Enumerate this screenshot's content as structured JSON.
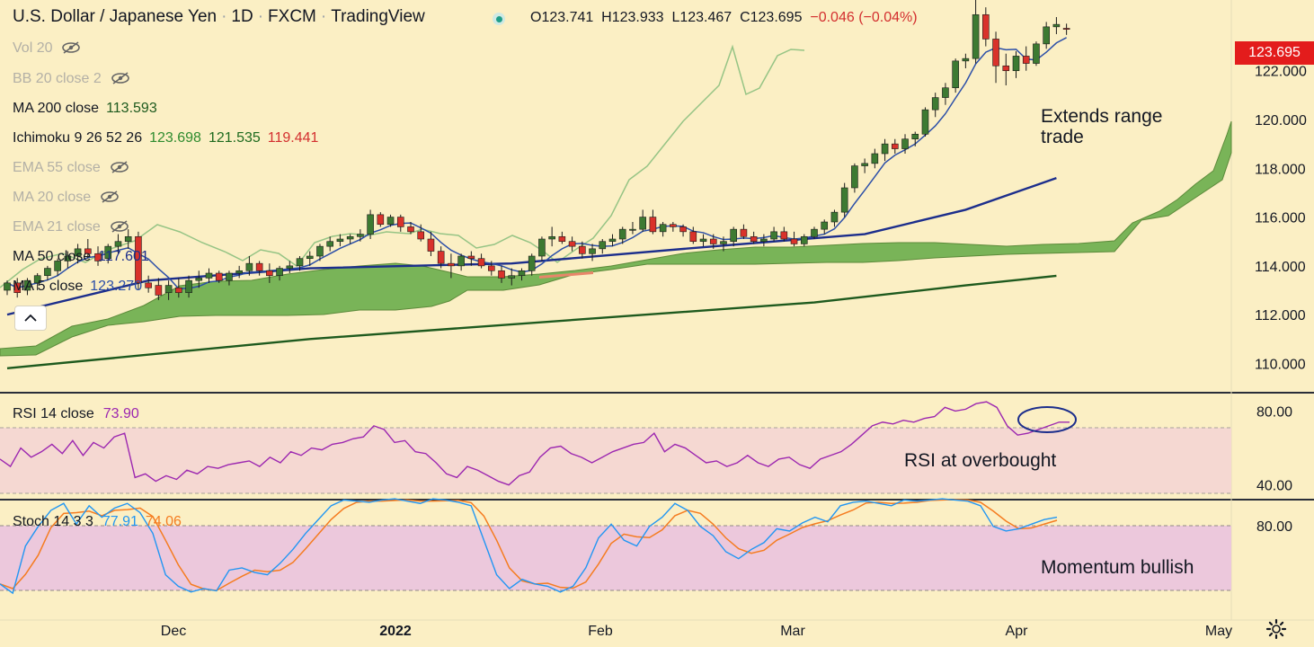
{
  "header": {
    "symbol": "U.S. Dollar / Japanese Yen",
    "interval": "1D",
    "exchange": "FXCM",
    "source": "TradingView",
    "open": "O123.741",
    "high": "H123.933",
    "low": "L123.467",
    "close": "C123.695",
    "change": "−0.046 (−0.04%)"
  },
  "legend": {
    "vol": "Vol 20",
    "bb": "BB 20 close 2",
    "ma200": "MA 200 close",
    "ma200_val": "113.593",
    "ichimoku": "Ichimoku 9 26 52 26",
    "ich_v1": "123.698",
    "ich_v2": "121.535",
    "ich_v3": "119.441",
    "ema55": "EMA 55 close",
    "ma20": "MA 20 close",
    "ema21": "EMA 21 close",
    "ma50": "MA 50 close",
    "ma50_val": "117.601",
    "ma5": "MA 5 close",
    "ma5_val": "123.270"
  },
  "rsi_label": {
    "name": "RSI 14 close",
    "value": "73.90"
  },
  "stoch_label": {
    "name": "Stoch 14 3 3",
    "k": "77.91",
    "d": "74.06"
  },
  "annotations": {
    "price": "Extends range\ntrade",
    "rsi": "RSI at overbought",
    "stoch": "Momentum bullish"
  },
  "current_price": "123.695",
  "colors": {
    "background": "#fbefc4",
    "bull_candle": "#3d7a32",
    "bear_candle": "#d9322b",
    "ma200": "#1e5a1e",
    "ma50": "#1c2e8c",
    "ma5": "#2c4fa8",
    "cloud": "#6aad4c",
    "lagging": "#96c485",
    "rsi": "#9c27b0",
    "rsi_band": "#f5d8d2",
    "stoch_band": "#ecc8dc",
    "stoch_k": "#2196f3",
    "stoch_d": "#f57c20"
  },
  "chart_data": {
    "type": "candlestick",
    "title": "U.S. Dollar / Japanese Yen · 1D · FXCM",
    "x_ticks": [
      "Dec",
      "2022",
      "Feb",
      "Mar",
      "Apr",
      "May"
    ],
    "y_ticks_price": [
      "110.000",
      "112.000",
      "114.000",
      "116.000",
      "118.000",
      "120.000",
      "122.000"
    ],
    "y_ticks_rsi": [
      "40.00",
      "80.00"
    ],
    "y_ticks_stoch": [
      "80.00"
    ],
    "ylim_price": [
      108.8,
      124.9
    ],
    "ylim_rsi": [
      34,
      88
    ],
    "ylim_stoch": [
      0,
      100
    ],
    "candles": [
      [
        113.0,
        113.4,
        112.8,
        113.3
      ],
      [
        113.3,
        113.5,
        112.7,
        112.9
      ],
      [
        113.0,
        113.5,
        112.8,
        113.4
      ],
      [
        113.3,
        113.7,
        113.0,
        113.6
      ],
      [
        113.6,
        114.0,
        113.4,
        113.9
      ],
      [
        113.8,
        114.3,
        113.6,
        114.2
      ],
      [
        114.2,
        114.6,
        113.9,
        114.4
      ],
      [
        114.4,
        114.9,
        114.1,
        114.7
      ],
      [
        114.7,
        115.1,
        114.3,
        114.5
      ],
      [
        114.5,
        114.8,
        114.0,
        114.2
      ],
      [
        114.3,
        114.9,
        114.1,
        114.8
      ],
      [
        114.8,
        115.3,
        114.5,
        115.0
      ],
      [
        115.0,
        115.5,
        114.7,
        115.2
      ],
      [
        115.2,
        115.4,
        113.0,
        113.3
      ],
      [
        113.3,
        113.6,
        112.9,
        113.1
      ],
      [
        113.2,
        113.5,
        112.6,
        112.8
      ],
      [
        112.9,
        113.4,
        112.6,
        113.2
      ],
      [
        113.1,
        113.5,
        112.7,
        112.9
      ],
      [
        112.9,
        113.6,
        112.7,
        113.4
      ],
      [
        113.4,
        113.8,
        113.1,
        113.5
      ],
      [
        113.5,
        113.9,
        113.3,
        113.7
      ],
      [
        113.7,
        113.8,
        113.3,
        113.4
      ],
      [
        113.4,
        113.8,
        113.2,
        113.7
      ],
      [
        113.7,
        114.0,
        113.5,
        113.8
      ],
      [
        113.8,
        114.4,
        113.6,
        114.1
      ],
      [
        114.1,
        114.2,
        113.6,
        113.8
      ],
      [
        113.8,
        114.1,
        113.3,
        113.6
      ],
      [
        113.6,
        114.0,
        113.4,
        113.9
      ],
      [
        113.9,
        114.2,
        113.7,
        114.0
      ],
      [
        114.0,
        114.4,
        113.8,
        114.3
      ],
      [
        114.3,
        114.6,
        114.0,
        114.4
      ],
      [
        114.4,
        114.9,
        114.2,
        114.8
      ],
      [
        114.8,
        115.2,
        114.6,
        115.0
      ],
      [
        115.0,
        115.3,
        114.8,
        115.1
      ],
      [
        115.1,
        115.3,
        114.9,
        115.2
      ],
      [
        115.2,
        115.5,
        115.0,
        115.3
      ],
      [
        115.3,
        116.3,
        115.1,
        116.1
      ],
      [
        116.1,
        116.2,
        115.6,
        115.7
      ],
      [
        115.7,
        116.1,
        115.6,
        116.0
      ],
      [
        116.0,
        116.1,
        115.4,
        115.6
      ],
      [
        115.6,
        115.8,
        115.3,
        115.4
      ],
      [
        115.4,
        115.7,
        115.0,
        115.1
      ],
      [
        115.1,
        115.4,
        114.4,
        114.6
      ],
      [
        114.6,
        114.8,
        113.9,
        114.1
      ],
      [
        114.1,
        114.5,
        113.5,
        114.0
      ],
      [
        114.0,
        114.5,
        113.8,
        114.4
      ],
      [
        114.4,
        114.6,
        114.0,
        114.3
      ],
      [
        114.3,
        114.5,
        113.9,
        114.0
      ],
      [
        114.0,
        114.2,
        113.6,
        113.8
      ],
      [
        113.8,
        114.0,
        113.3,
        113.5
      ],
      [
        113.5,
        113.9,
        113.2,
        113.6
      ],
      [
        113.6,
        113.9,
        113.4,
        113.8
      ],
      [
        113.8,
        114.5,
        113.6,
        114.4
      ],
      [
        114.4,
        115.2,
        114.2,
        115.1
      ],
      [
        115.1,
        115.6,
        114.8,
        115.2
      ],
      [
        115.2,
        115.4,
        114.9,
        115.0
      ],
      [
        115.0,
        115.2,
        114.6,
        114.8
      ],
      [
        114.8,
        115.0,
        114.3,
        114.5
      ],
      [
        114.5,
        114.9,
        114.2,
        114.7
      ],
      [
        114.7,
        115.1,
        114.5,
        115.0
      ],
      [
        115.0,
        115.3,
        114.8,
        115.1
      ],
      [
        115.1,
        115.6,
        114.9,
        115.5
      ],
      [
        115.5,
        115.8,
        115.3,
        115.5
      ],
      [
        115.5,
        116.3,
        115.4,
        116.0
      ],
      [
        116.0,
        116.3,
        115.3,
        115.4
      ],
      [
        115.4,
        115.8,
        115.2,
        115.7
      ],
      [
        115.7,
        115.8,
        115.4,
        115.6
      ],
      [
        115.6,
        115.7,
        115.2,
        115.4
      ],
      [
        115.4,
        115.6,
        114.9,
        115.0
      ],
      [
        115.0,
        115.3,
        114.8,
        115.1
      ],
      [
        115.1,
        115.3,
        114.7,
        114.9
      ],
      [
        114.9,
        115.2,
        114.6,
        115.0
      ],
      [
        115.0,
        115.6,
        114.8,
        115.5
      ],
      [
        115.5,
        115.7,
        115.1,
        115.2
      ],
      [
        115.2,
        115.4,
        114.9,
        115.0
      ],
      [
        115.0,
        115.3,
        114.8,
        115.1
      ],
      [
        115.1,
        115.6,
        115.0,
        115.4
      ],
      [
        115.4,
        115.6,
        115.0,
        115.1
      ],
      [
        115.1,
        115.4,
        114.8,
        114.9
      ],
      [
        114.9,
        115.3,
        114.8,
        115.2
      ],
      [
        115.2,
        115.6,
        115.1,
        115.5
      ],
      [
        115.5,
        115.9,
        115.3,
        115.8
      ],
      [
        115.8,
        116.3,
        115.6,
        116.2
      ],
      [
        116.2,
        117.4,
        116.0,
        117.2
      ],
      [
        117.2,
        118.2,
        117.0,
        118.1
      ],
      [
        118.1,
        118.4,
        117.8,
        118.2
      ],
      [
        118.2,
        118.8,
        118.0,
        118.6
      ],
      [
        118.6,
        119.2,
        118.3,
        119.0
      ],
      [
        119.0,
        119.2,
        118.6,
        118.8
      ],
      [
        118.8,
        119.4,
        118.6,
        119.2
      ],
      [
        119.2,
        119.5,
        118.9,
        119.4
      ],
      [
        119.4,
        120.5,
        119.3,
        120.4
      ],
      [
        120.4,
        121.1,
        120.1,
        120.9
      ],
      [
        120.9,
        121.5,
        120.6,
        121.3
      ],
      [
        121.3,
        122.5,
        121.1,
        122.4
      ],
      [
        122.4,
        122.7,
        122.1,
        122.5
      ],
      [
        122.5,
        125.1,
        122.3,
        124.3
      ],
      [
        124.3,
        124.6,
        123.0,
        123.3
      ],
      [
        123.3,
        123.6,
        121.5,
        122.2
      ],
      [
        122.2,
        122.7,
        121.4,
        122.0
      ],
      [
        122.0,
        122.8,
        121.7,
        122.6
      ],
      [
        122.6,
        123.0,
        122.0,
        122.3
      ],
      [
        122.3,
        123.2,
        122.2,
        123.1
      ],
      [
        123.1,
        124.0,
        122.9,
        123.8
      ],
      [
        123.8,
        124.2,
        123.5,
        123.9
      ],
      [
        123.74,
        123.93,
        123.47,
        123.7
      ]
    ],
    "ma200": [
      [
        0,
        109.8
      ],
      [
        30,
        111.0
      ],
      [
        60,
        111.9
      ],
      [
        80,
        112.5
      ],
      [
        95,
        113.2
      ],
      [
        104,
        113.59
      ]
    ],
    "ma50": [
      [
        0,
        112.0
      ],
      [
        14,
        113.4
      ],
      [
        30,
        113.9
      ],
      [
        50,
        114.1
      ],
      [
        70,
        114.8
      ],
      [
        85,
        115.3
      ],
      [
        95,
        116.3
      ],
      [
        104,
        117.6
      ]
    ],
    "rsi": [
      54,
      50,
      60,
      55,
      58,
      62,
      57,
      64,
      56,
      63,
      60,
      66,
      68,
      44,
      46,
      42,
      45,
      43,
      48,
      46,
      50,
      49,
      51,
      52,
      53,
      50,
      55,
      52,
      58,
      56,
      60,
      59,
      62,
      63,
      65,
      66,
      72,
      70,
      63,
      64,
      58,
      57,
      52,
      46,
      44,
      50,
      48,
      45,
      42,
      40,
      45,
      47,
      55,
      60,
      61,
      57,
      55,
      52,
      55,
      58,
      60,
      62,
      63,
      68,
      58,
      62,
      60,
      56,
      52,
      53,
      50,
      52,
      56,
      52,
      50,
      54,
      55,
      51,
      49,
      54,
      56,
      58,
      62,
      67,
      72,
      74,
      73,
      75,
      74,
      76,
      77,
      82,
      80,
      81,
      84,
      85,
      82,
      72,
      67,
      68,
      70,
      72,
      74,
      74
    ],
    "stoch_k": [
      22,
      14,
      55,
      72,
      86,
      92,
      74,
      90,
      80,
      88,
      92,
      84,
      66,
      30,
      20,
      15,
      18,
      16,
      34,
      36,
      32,
      30,
      40,
      52,
      66,
      78,
      90,
      95,
      94,
      93,
      95,
      96,
      94,
      92,
      96,
      95,
      93,
      90,
      60,
      30,
      18,
      26,
      22,
      20,
      15,
      20,
      36,
      62,
      74,
      60,
      55,
      72,
      80,
      92,
      86,
      72,
      64,
      50,
      44,
      52,
      58,
      70,
      68,
      75,
      80,
      76,
      90,
      93,
      94,
      92,
      90,
      95,
      94,
      95,
      96,
      95,
      94,
      90,
      72,
      68,
      70,
      74,
      78,
      80
    ]
  }
}
